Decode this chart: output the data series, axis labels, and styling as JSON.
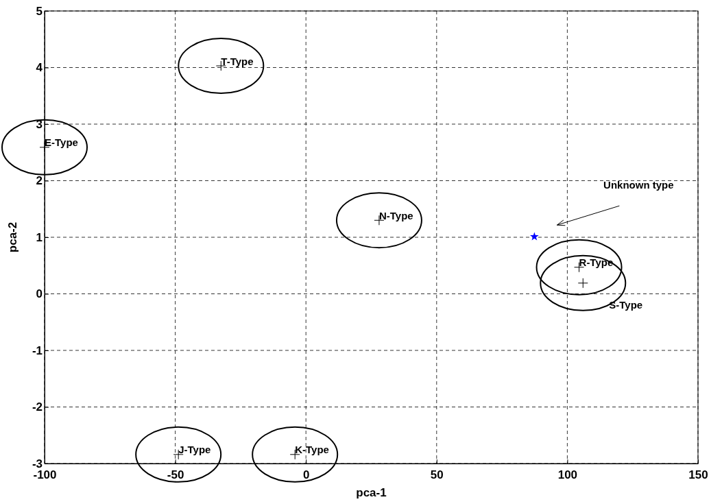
{
  "chart_data": {
    "type": "scatter",
    "xlabel": "pca-1",
    "ylabel": "pca-2",
    "xlim": [
      -100,
      150
    ],
    "xticks": [
      -100,
      -50,
      0,
      50,
      100,
      150
    ],
    "ylim": [
      -3,
      5
    ],
    "yticks": [
      -3,
      -2,
      -1,
      0,
      1,
      2,
      3,
      4,
      5
    ],
    "grid": true,
    "line_style": "dashed",
    "series": [
      {
        "color": "#000000",
        "marker": "cross",
        "x": [
          -32.5,
          -100,
          28,
          104.5,
          106,
          -48.8,
          -4.2
        ],
        "values": [
          4.03,
          2.59,
          1.3,
          0.47,
          0.19,
          -2.84,
          -2.84
        ]
      },
      {
        "color": "#0000ff",
        "marker": "star",
        "x": [
          87.4
        ],
        "values": [
          1.01
        ]
      }
    ],
    "annotations": [
      {
        "text": "T-Type",
        "x": -32.5,
        "y": 4.03
      },
      {
        "text": "E-Type",
        "x": -100,
        "y": 2.59
      },
      {
        "text": "N-Type",
        "x": 28,
        "y": 1.3
      },
      {
        "text": "R-Type",
        "x": 104.5,
        "y": 0.47
      },
      {
        "text": "S-Type",
        "x": 106,
        "y": 0.19
      },
      {
        "text": "J-Type",
        "x": -48.8,
        "y": -2.84
      },
      {
        "text": "K-Type",
        "x": -4.2,
        "y": -2.84
      },
      "Unknown type"
    ]
  }
}
